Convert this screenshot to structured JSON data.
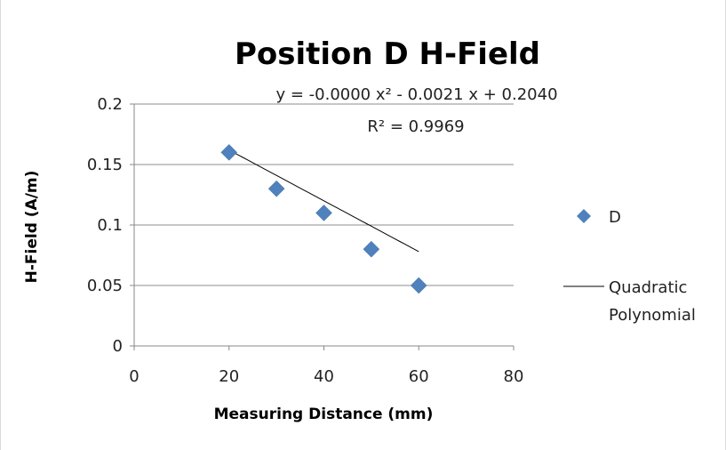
{
  "chart_data": {
    "type": "scatter",
    "title": "Position D H-Field",
    "xlabel": "Measuring Distance (mm)",
    "ylabel": "H-Field (A/m)",
    "xlim": [
      0,
      80
    ],
    "ylim": [
      0,
      0.2
    ],
    "x_ticks": [
      "0",
      "20",
      "40",
      "60",
      "80"
    ],
    "y_ticks": [
      "0",
      "0.05",
      "0.1",
      "0.15",
      "0.2"
    ],
    "grid": "horizontal major",
    "legend_position": "right",
    "series": [
      {
        "name": "D",
        "marker": "diamond",
        "color": "#4f81bd",
        "points": [
          {
            "x": 20,
            "y": 0.16
          },
          {
            "x": 30,
            "y": 0.13
          },
          {
            "x": 40,
            "y": 0.11
          },
          {
            "x": 50,
            "y": 0.08
          },
          {
            "x": 60,
            "y": 0.05
          }
        ]
      }
    ],
    "trendline": {
      "name": "Quadratic Polynomial",
      "name_lines": [
        "Quadratic",
        "Polynomial"
      ],
      "type": "polynomial",
      "order": 2,
      "color": "#000000",
      "coefficients": {
        "a": 0.0,
        "b": -0.0021,
        "c": 0.204
      },
      "fit_range": [
        20,
        60
      ],
      "equation": "y = -0.0000 x² - 0.0021 x + 0.2040",
      "r_squared": "R² = 0.9969"
    }
  }
}
